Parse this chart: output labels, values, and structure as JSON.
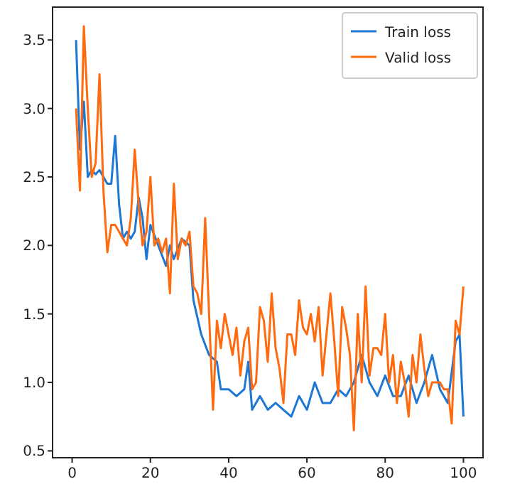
{
  "chart_data": {
    "type": "line",
    "xlim": [
      -5,
      105
    ],
    "ylim": [
      0.45,
      3.74
    ],
    "xticks": [
      0,
      20,
      40,
      60,
      80,
      100
    ],
    "yticks": [
      {
        "value": 0.5,
        "label": "0.5"
      },
      {
        "value": 1,
        "label": "1.0"
      },
      {
        "value": 1.5,
        "label": "1.5"
      },
      {
        "value": 2,
        "label": "2.0"
      },
      {
        "value": 2.5,
        "label": "2.5"
      },
      {
        "value": 3,
        "label": "3.0"
      },
      {
        "value": 3.5,
        "label": "3.5"
      }
    ],
    "grid": false,
    "legend": "top right",
    "marker": "none",
    "line_style": "solid",
    "series": [
      {
        "name": "Train loss",
        "color": "#1f77d4",
        "x": [
          1,
          2,
          3,
          4,
          5,
          6,
          7,
          8,
          9,
          10,
          11,
          12,
          13,
          14,
          15,
          16,
          17,
          18,
          19,
          20,
          22,
          24,
          25,
          26,
          28,
          30,
          31,
          33,
          35,
          37,
          38,
          40,
          42,
          44,
          45,
          46,
          48,
          50,
          52,
          54,
          56,
          58,
          60,
          62,
          64,
          66,
          68,
          70,
          72,
          74,
          76,
          78,
          80,
          82,
          84,
          86,
          88,
          90,
          92,
          94,
          96,
          98,
          99,
          100
        ],
        "values": [
          3.5,
          2.7,
          3.05,
          2.5,
          2.55,
          2.52,
          2.55,
          2.5,
          2.45,
          2.45,
          2.8,
          2.3,
          2.05,
          2.1,
          2.05,
          2.1,
          2.35,
          2.2,
          1.9,
          2.15,
          2.0,
          1.85,
          2.0,
          1.9,
          2.05,
          2.0,
          1.6,
          1.35,
          1.2,
          1.15,
          0.95,
          0.95,
          0.9,
          0.95,
          1.15,
          0.8,
          0.9,
          0.8,
          0.85,
          0.8,
          0.75,
          0.9,
          0.8,
          1.0,
          0.85,
          0.85,
          0.95,
          0.9,
          1.0,
          1.2,
          1.0,
          0.9,
          1.05,
          0.9,
          0.9,
          1.05,
          0.85,
          1.0,
          1.2,
          0.95,
          0.85,
          1.3,
          1.35,
          0.75
        ]
      },
      {
        "name": "Valid loss",
        "color": "#ff6a0e",
        "x": [
          1,
          2,
          3,
          4,
          5,
          6,
          7,
          8,
          9,
          10,
          11,
          12,
          13,
          14,
          15,
          16,
          17,
          18,
          19,
          20,
          21,
          22,
          23,
          24,
          25,
          26,
          27,
          28,
          29,
          30,
          31,
          32,
          33,
          34,
          35,
          36,
          37,
          38,
          39,
          40,
          41,
          42,
          43,
          44,
          45,
          46,
          47,
          48,
          49,
          50,
          51,
          52,
          53,
          54,
          55,
          56,
          57,
          58,
          59,
          60,
          61,
          62,
          63,
          64,
          65,
          66,
          67,
          68,
          69,
          70,
          71,
          72,
          73,
          74,
          75,
          76,
          77,
          78,
          79,
          80,
          81,
          82,
          83,
          84,
          85,
          86,
          87,
          88,
          89,
          90,
          91,
          92,
          93,
          94,
          95,
          96,
          97,
          98,
          99,
          100
        ],
        "values": [
          3.0,
          2.4,
          3.6,
          3.0,
          2.5,
          2.6,
          3.25,
          2.4,
          1.95,
          2.15,
          2.15,
          2.1,
          2.05,
          2.0,
          2.2,
          2.7,
          2.3,
          2.0,
          2.1,
          2.5,
          2.0,
          2.05,
          1.95,
          2.05,
          1.65,
          2.45,
          1.9,
          2.05,
          2.0,
          2.1,
          1.7,
          1.65,
          1.5,
          2.2,
          1.5,
          0.8,
          1.45,
          1.25,
          1.5,
          1.35,
          1.2,
          1.4,
          1.05,
          1.3,
          1.4,
          0.95,
          1.0,
          1.55,
          1.45,
          1.15,
          1.65,
          1.25,
          1.1,
          0.85,
          1.35,
          1.35,
          1.2,
          1.6,
          1.4,
          1.35,
          1.5,
          1.3,
          1.55,
          1.05,
          1.35,
          1.65,
          1.3,
          0.9,
          1.55,
          1.4,
          1.2,
          0.65,
          1.5,
          1.0,
          1.7,
          1.05,
          1.25,
          1.25,
          1.2,
          1.5,
          1.0,
          1.2,
          0.85,
          1.15,
          1.0,
          0.75,
          1.2,
          1.0,
          1.35,
          1.1,
          0.9,
          1.0,
          1.0,
          1.0,
          0.95,
          0.95,
          0.7,
          1.45,
          1.35,
          1.7
        ]
      }
    ]
  }
}
